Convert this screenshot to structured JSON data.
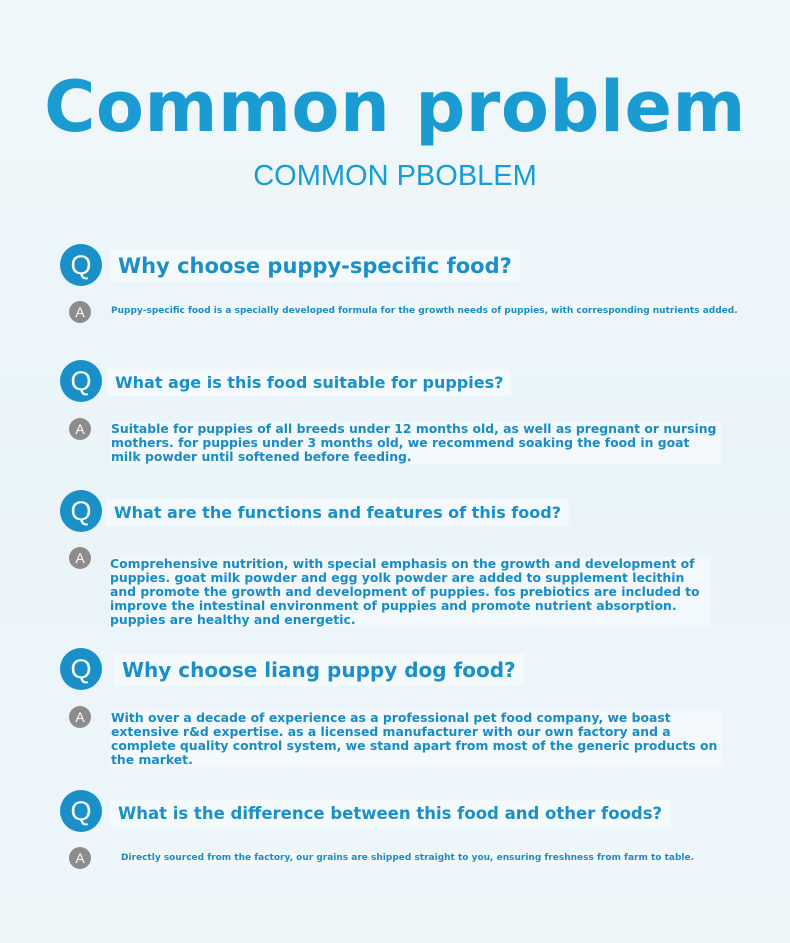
{
  "header": {
    "title": "Common problem",
    "subtitle": "COMMON PBOBLEM"
  },
  "faq": [
    {
      "q_icon": "Q",
      "a_icon": "A",
      "question": "Why choose puppy-specific food?",
      "answer": "Puppy-specific food is a specially developed formula for the growth needs of puppies, with corresponding nutrients added."
    },
    {
      "q_icon": "Q",
      "a_icon": "A",
      "question": "What age is this food suitable for puppies?",
      "answer": "Suitable for puppies of all breeds under 12 months old, as well as pregnant or nursing mothers. for puppies under 3 months old, we recommend soaking the food in goat milk powder until softened before feeding."
    },
    {
      "q_icon": "Q",
      "a_icon": "A",
      "question": "What are the functions and features of this food?",
      "answer": "Comprehensive nutrition, with special emphasis on the growth and development of puppies. goat milk powder and egg yolk powder are added to supplement lecithin and promote the growth and development of puppies. fos prebiotics are included to improve the intestinal environment of puppies and promote nutrient absorption. puppies are healthy and energetic."
    },
    {
      "q_icon": "Q",
      "a_icon": "A",
      "question": "Why choose liang puppy dog food?",
      "answer": "With over a decade of experience as a professional pet food company, we boast extensive r&d expertise. as a licensed manufacturer with our own factory and a complete quality control system, we stand apart from most of the generic products on the market."
    },
    {
      "q_icon": "Q",
      "a_icon": "A",
      "question": "What is the difference between this food and other foods?",
      "answer": "Directly sourced from the factory, our grains are shipped straight to you, ensuring freshness from farm to table."
    }
  ]
}
